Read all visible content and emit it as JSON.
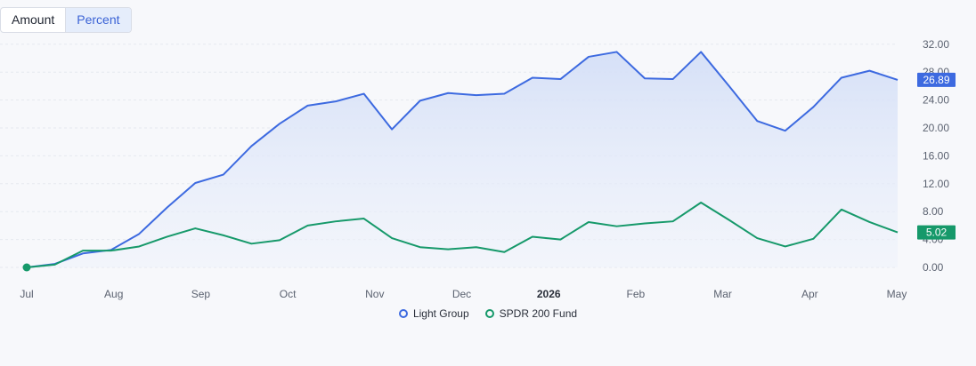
{
  "toggle": {
    "amount_label": "Amount",
    "percent_label": "Percent"
  },
  "colors": {
    "light_group": "#3d6ae0",
    "spdr": "#16996a",
    "fill": "#dbe4f8"
  },
  "chart_data": {
    "type": "line",
    "x_labels": [
      "Jul",
      "Aug",
      "Sep",
      "Oct",
      "Nov",
      "Dec",
      "2026",
      "Feb",
      "Mar",
      "Apr",
      "May"
    ],
    "x_label_bold": [
      false,
      false,
      false,
      false,
      false,
      false,
      true,
      false,
      false,
      false,
      false
    ],
    "ylim": [
      -2,
      32.5
    ],
    "yticks": [
      "0.00",
      "4.00",
      "8.00",
      "12.00",
      "16.00",
      "20.00",
      "24.00",
      "28.00",
      "32.00"
    ],
    "grid": true,
    "legend_position": "bottom",
    "series": [
      {
        "name": "Light Group",
        "color": "#3d6ae0",
        "area": true,
        "last_value_label": "26.89",
        "values": [
          0.0,
          0.5,
          2.0,
          2.5,
          4.8,
          8.6,
          12.1,
          13.3,
          17.4,
          20.6,
          23.2,
          23.8,
          24.9,
          19.8,
          23.9,
          25.0,
          24.7,
          24.9,
          27.2,
          27.0,
          30.2,
          30.9,
          27.1,
          27.0,
          30.9,
          26.0,
          21.0,
          19.6,
          23.0,
          27.2,
          28.2,
          26.89
        ]
      },
      {
        "name": "SPDR 200 Fund",
        "color": "#16996a",
        "area": false,
        "last_value_label": "5.02",
        "values": [
          0.0,
          0.4,
          2.4,
          2.4,
          3.0,
          4.4,
          5.6,
          4.6,
          3.4,
          3.9,
          6.0,
          6.6,
          7.0,
          4.2,
          2.9,
          2.6,
          2.9,
          2.2,
          4.4,
          4.0,
          6.5,
          5.9,
          6.3,
          6.6,
          9.3,
          6.8,
          4.2,
          3.0,
          4.1,
          8.3,
          6.5,
          5.02
        ]
      }
    ]
  }
}
